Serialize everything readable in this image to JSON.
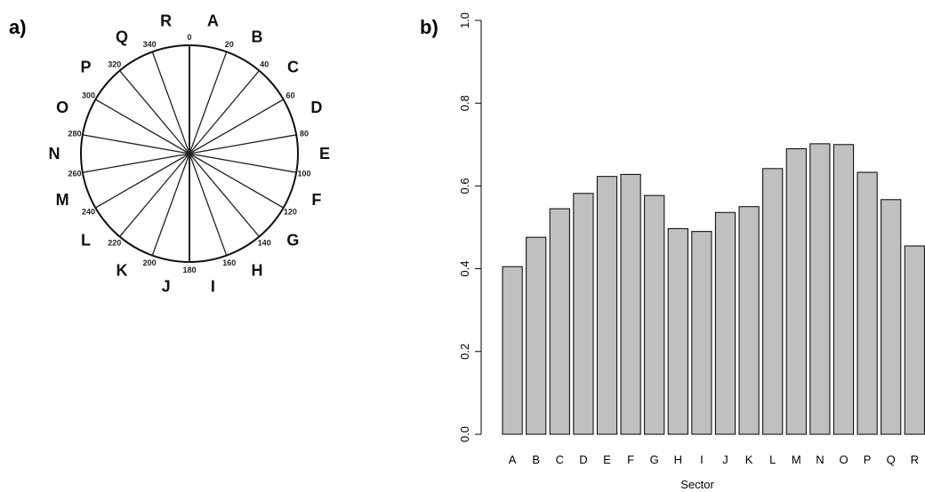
{
  "panel_a": {
    "label": "a)",
    "sectors": [
      "A",
      "B",
      "C",
      "D",
      "E",
      "F",
      "G",
      "H",
      "I",
      "J",
      "K",
      "L",
      "M",
      "N",
      "O",
      "P",
      "Q",
      "R"
    ],
    "degree_labels": [
      "0",
      "20",
      "40",
      "60",
      "80",
      "100",
      "120",
      "140",
      "160",
      "180",
      "200",
      "220",
      "240",
      "260",
      "280",
      "300",
      "320",
      "340"
    ]
  },
  "panel_b": {
    "label": "b)"
  },
  "chart_data": {
    "type": "bar",
    "categories": [
      "A",
      "B",
      "C",
      "D",
      "E",
      "F",
      "G",
      "H",
      "I",
      "J",
      "K",
      "L",
      "M",
      "N",
      "O",
      "P",
      "Q",
      "R"
    ],
    "values": [
      0.405,
      0.476,
      0.545,
      0.582,
      0.623,
      0.628,
      0.577,
      0.497,
      0.49,
      0.536,
      0.55,
      0.642,
      0.69,
      0.702,
      0.7,
      0.633,
      0.567,
      0.455
    ],
    "title": "",
    "xlabel": "Sector",
    "ylabel": "",
    "ylim": [
      0,
      1.0
    ],
    "yticks": [
      "0.0",
      "0.2",
      "0.4",
      "0.6",
      "0.8",
      "1.0"
    ],
    "bar_color": "#c0c0c0",
    "grid": false
  }
}
